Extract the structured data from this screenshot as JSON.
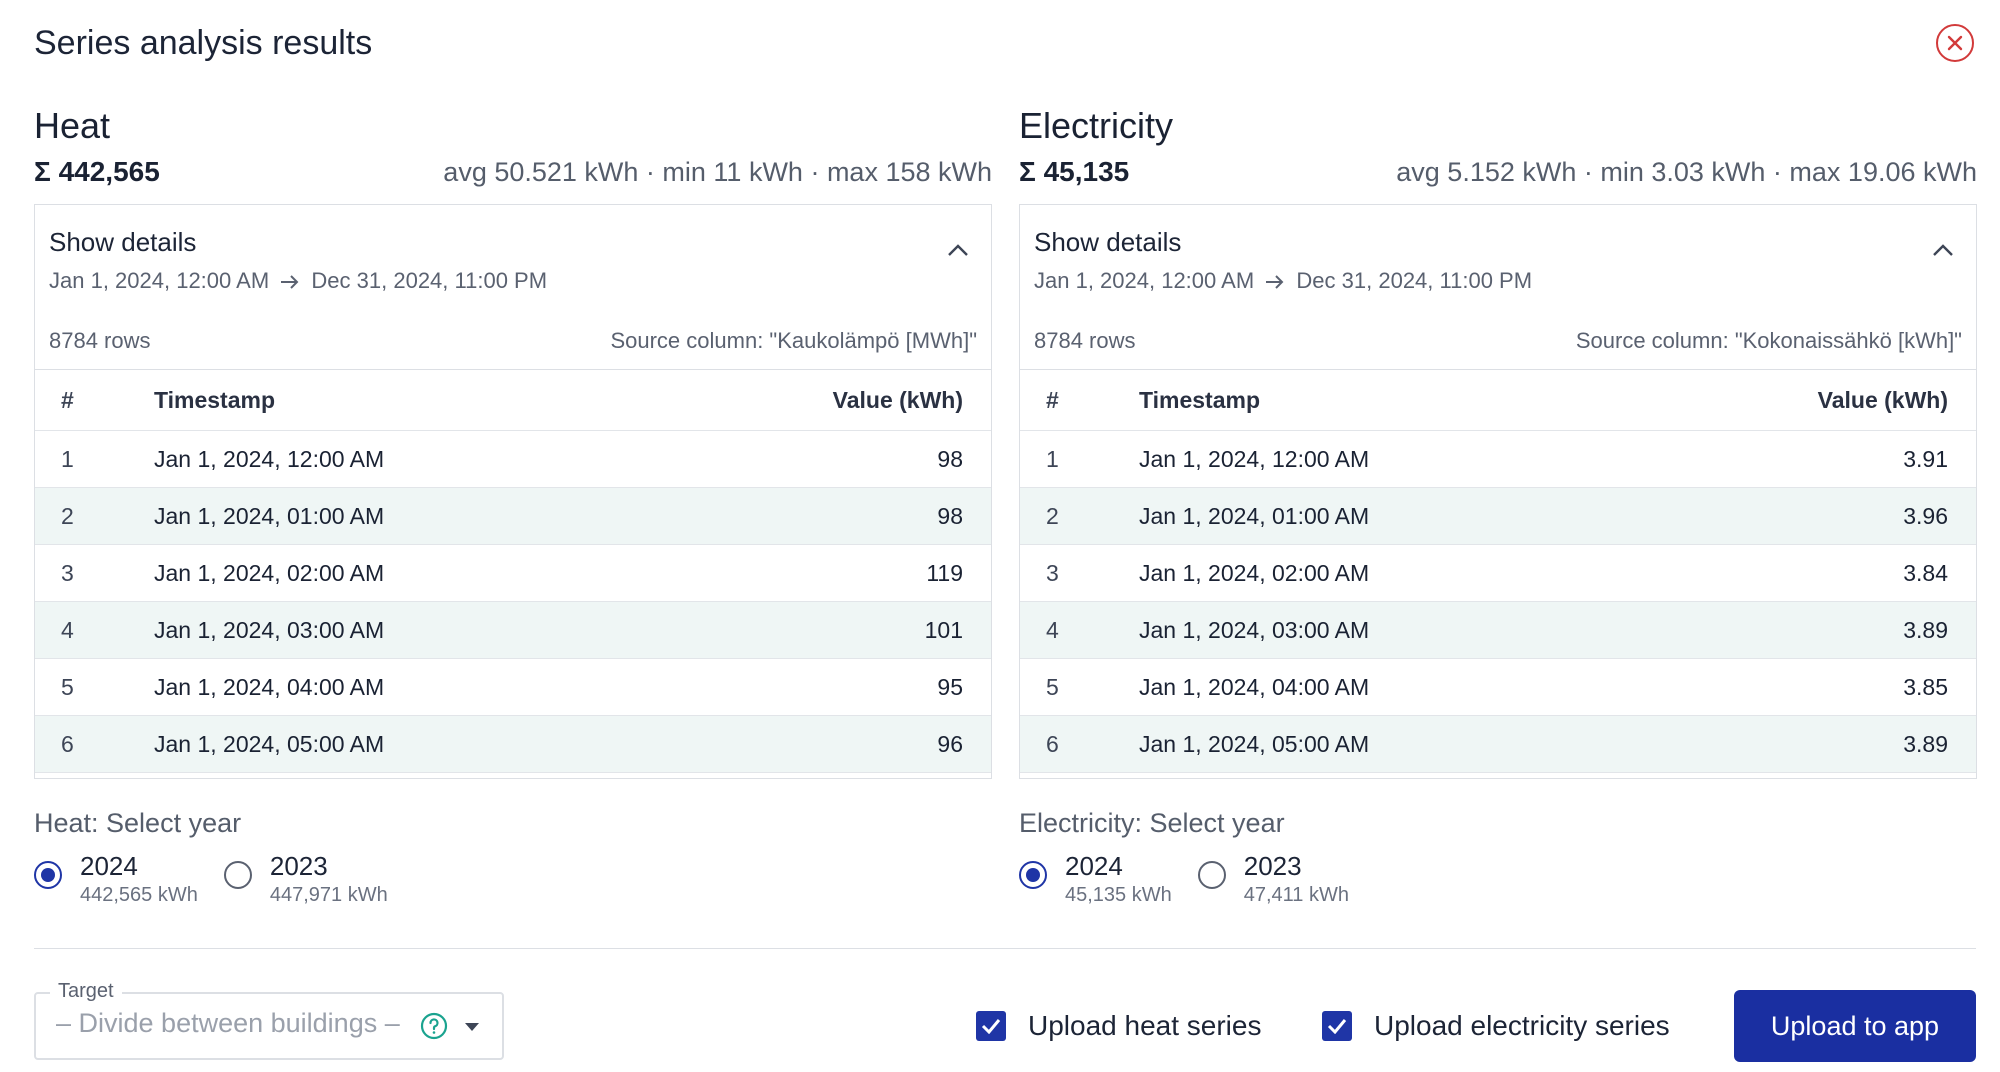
{
  "dialog": {
    "title": "Series analysis results"
  },
  "heat": {
    "name": "Heat",
    "sum": "Σ 442,565",
    "stats": "avg 50.521 kWh · min 11 kWh · max 158 kWh",
    "details_label": "Show details",
    "range_start": "Jan 1, 2024, 12:00 AM",
    "range_end": "Dec 31, 2024, 11:00 PM",
    "rows_text": "8784 rows",
    "source_text": "Source column: \"Kaukolämpö [MWh]\"",
    "columns": [
      "#",
      "Timestamp",
      "Value (kWh)"
    ],
    "rows": [
      {
        "idx": "1",
        "ts": "Jan 1, 2024, 12:00 AM",
        "val": "98"
      },
      {
        "idx": "2",
        "ts": "Jan 1, 2024, 01:00 AM",
        "val": "98"
      },
      {
        "idx": "3",
        "ts": "Jan 1, 2024, 02:00 AM",
        "val": "119"
      },
      {
        "idx": "4",
        "ts": "Jan 1, 2024, 03:00 AM",
        "val": "101"
      },
      {
        "idx": "5",
        "ts": "Jan 1, 2024, 04:00 AM",
        "val": "95"
      },
      {
        "idx": "6",
        "ts": "Jan 1, 2024, 05:00 AM",
        "val": "96"
      }
    ],
    "year_label": "Heat: Select year",
    "years": [
      {
        "year": "2024",
        "kwh": "442,565 kWh",
        "selected": true
      },
      {
        "year": "2023",
        "kwh": "447,971 kWh",
        "selected": false
      }
    ]
  },
  "electricity": {
    "name": "Electricity",
    "sum": "Σ 45,135",
    "stats": "avg 5.152 kWh · min 3.03 kWh · max 19.06 kWh",
    "details_label": "Show details",
    "range_start": "Jan 1, 2024, 12:00 AM",
    "range_end": "Dec 31, 2024, 11:00 PM",
    "rows_text": "8784 rows",
    "source_text": "Source column: \"Kokonaissähkö [kWh]\"",
    "columns": [
      "#",
      "Timestamp",
      "Value (kWh)"
    ],
    "rows": [
      {
        "idx": "1",
        "ts": "Jan 1, 2024, 12:00 AM",
        "val": "3.91"
      },
      {
        "idx": "2",
        "ts": "Jan 1, 2024, 01:00 AM",
        "val": "3.96"
      },
      {
        "idx": "3",
        "ts": "Jan 1, 2024, 02:00 AM",
        "val": "3.84"
      },
      {
        "idx": "4",
        "ts": "Jan 1, 2024, 03:00 AM",
        "val": "3.89"
      },
      {
        "idx": "5",
        "ts": "Jan 1, 2024, 04:00 AM",
        "val": "3.85"
      },
      {
        "idx": "6",
        "ts": "Jan 1, 2024, 05:00 AM",
        "val": "3.89"
      }
    ],
    "year_label": "Electricity: Select year",
    "years": [
      {
        "year": "2024",
        "kwh": "45,135 kWh",
        "selected": true
      },
      {
        "year": "2023",
        "kwh": "47,411 kWh",
        "selected": false
      }
    ]
  },
  "footer": {
    "target_label": "Target",
    "target_value": "– Divide between buildings –",
    "upload_heat_label": "Upload heat series",
    "upload_heat_checked": true,
    "upload_electricity_label": "Upload electricity series",
    "upload_electricity_checked": true,
    "upload_button": "Upload to app"
  },
  "colors": {
    "primary": "#1a2fa1",
    "close": "#d23a3a",
    "help": "#1aa38f",
    "row_alt": "#eff6f5"
  },
  "icons": {
    "close": "close-circle-icon",
    "collapse": "chevron-up-icon",
    "arrow": "arrow-right-icon",
    "help": "help-circle-icon",
    "dropdown": "caret-down-icon",
    "check": "checkmark-icon"
  }
}
